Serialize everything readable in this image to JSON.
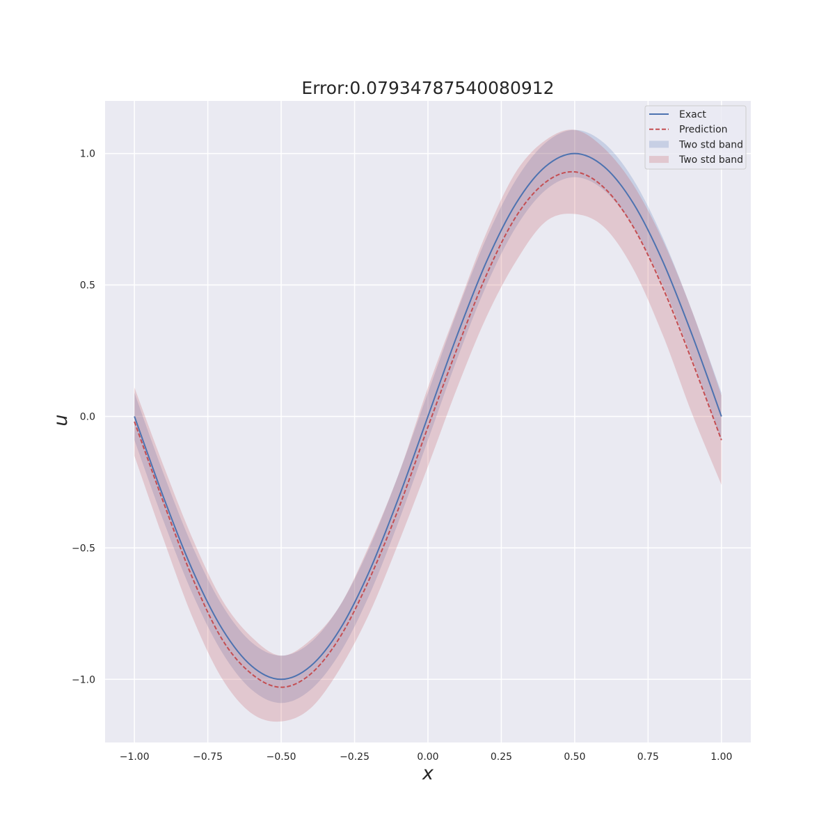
{
  "chart_data": {
    "type": "line",
    "title": "Error:0.07934787540080912",
    "xlabel": "x",
    "ylabel": "u",
    "xlim": [
      -1.1,
      1.1
    ],
    "ylim": [
      -1.24,
      1.2
    ],
    "xticks": [
      -1.0,
      -0.75,
      -0.5,
      -0.25,
      0.0,
      0.25,
      0.5,
      0.75,
      1.0
    ],
    "xtick_labels": [
      "−1.00",
      "−0.75",
      "−0.50",
      "−0.25",
      "0.00",
      "0.25",
      "0.50",
      "0.75",
      "1.00"
    ],
    "yticks": [
      -1.0,
      -0.5,
      0.0,
      0.5,
      1.0
    ],
    "ytick_labels": [
      "−1.0",
      "−0.5",
      "0.0",
      "0.5",
      "1.0"
    ],
    "grid": true,
    "legend_position": "top-right",
    "x": [
      -1.0,
      -0.9,
      -0.8,
      -0.7,
      -0.6,
      -0.5,
      -0.4,
      -0.3,
      -0.2,
      -0.1,
      0.0,
      0.1,
      0.2,
      0.3,
      0.4,
      0.5,
      0.6,
      0.7,
      0.8,
      0.9,
      1.0
    ],
    "series": [
      {
        "name": "Exact",
        "kind": "line",
        "color": "#4c72b0",
        "values": [
          0.0,
          -0.31,
          -0.59,
          -0.81,
          -0.95,
          -1.0,
          -0.95,
          -0.81,
          -0.59,
          -0.31,
          0.0,
          0.31,
          0.59,
          0.81,
          0.95,
          1.0,
          0.95,
          0.81,
          0.59,
          0.31,
          0.0
        ]
      },
      {
        "name": "Prediction",
        "kind": "dashed-line",
        "color": "#c44e52",
        "values": [
          -0.02,
          -0.33,
          -0.62,
          -0.85,
          -0.98,
          -1.03,
          -0.98,
          -0.84,
          -0.62,
          -0.35,
          -0.04,
          0.26,
          0.54,
          0.76,
          0.89,
          0.93,
          0.87,
          0.72,
          0.49,
          0.21,
          -0.09
        ]
      },
      {
        "name": "Two std band",
        "kind": "band",
        "color": "#4c72b0",
        "lower": [
          -0.09,
          -0.4,
          -0.68,
          -0.9,
          -1.04,
          -1.09,
          -1.04,
          -0.9,
          -0.68,
          -0.4,
          -0.09,
          0.22,
          0.5,
          0.72,
          0.86,
          0.91,
          0.86,
          0.72,
          0.5,
          0.22,
          -0.09
        ],
        "upper": [
          0.09,
          -0.22,
          -0.5,
          -0.72,
          -0.86,
          -0.91,
          -0.86,
          -0.72,
          -0.5,
          -0.22,
          0.09,
          0.4,
          0.68,
          0.9,
          1.04,
          1.09,
          1.04,
          0.9,
          0.68,
          0.4,
          0.09
        ]
      },
      {
        "name": "Two std band",
        "kind": "band",
        "color": "#c44e52",
        "lower": [
          -0.15,
          -0.47,
          -0.77,
          -1.0,
          -1.13,
          -1.16,
          -1.11,
          -0.96,
          -0.75,
          -0.48,
          -0.19,
          0.11,
          0.38,
          0.59,
          0.74,
          0.77,
          0.72,
          0.56,
          0.31,
          0.01,
          -0.26
        ],
        "upper": [
          0.11,
          -0.19,
          -0.47,
          -0.7,
          -0.84,
          -0.91,
          -0.85,
          -0.72,
          -0.49,
          -0.22,
          0.11,
          0.41,
          0.7,
          0.93,
          1.05,
          1.09,
          1.02,
          0.88,
          0.67,
          0.4,
          0.08
        ]
      }
    ]
  }
}
